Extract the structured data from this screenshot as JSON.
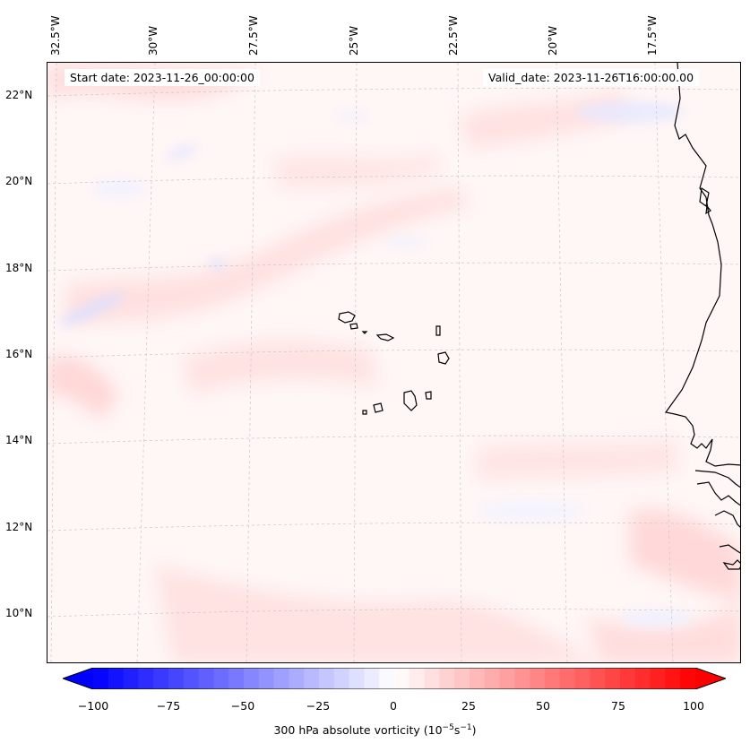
{
  "header": {
    "start_date": "Start date: 2023-11-26_00:00:00",
    "valid_date": "Valid_date: 2023-11-26T16:00:00.00"
  },
  "axes": {
    "lon_labels": [
      "32.5°W",
      "30°W",
      "27.5°W",
      "25°W",
      "22.5°W",
      "20°W",
      "17.5°W"
    ],
    "lat_labels": [
      "22°N",
      "20°N",
      "18°N",
      "16°N",
      "14°N",
      "12°N",
      "10°N"
    ]
  },
  "colorbar": {
    "ticks": [
      "−100",
      "−75",
      "−50",
      "−25",
      "0",
      "25",
      "50",
      "75",
      "100"
    ],
    "label_main": "300 hPa absolute vorticity (10",
    "label_exp1": "−5",
    "label_mid": "s",
    "label_exp2": "−1",
    "label_end": ")",
    "min_color": "#0000ff",
    "mid_color": "#ffffff",
    "max_color": "#ff0000"
  },
  "map": {
    "ocean_base_color": "#fff6f6",
    "coastline_color": "#000000",
    "gridline_color": "#c8c8c8"
  }
}
